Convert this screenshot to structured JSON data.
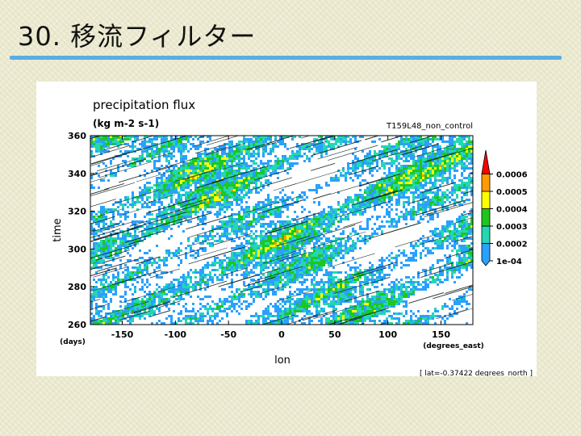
{
  "slide": {
    "title": "30. 移流フィルター",
    "rule_color": "#5aaee4"
  },
  "chart_data": {
    "type": "heatmap",
    "title": "precipitation flux",
    "subtitle": "(kg m-2 s-1)",
    "run_label": "T159L48_non_control",
    "xlabel": "lon",
    "ylabel": "time",
    "x_unit_label": "(degrees_east)",
    "y_unit_label": "(days)",
    "xlim": [
      -180,
      180
    ],
    "ylim": [
      260,
      360
    ],
    "x_ticks": [
      -150,
      -100,
      -50,
      0,
      50,
      100,
      150
    ],
    "y_ticks": [
      260,
      280,
      300,
      320,
      340,
      360
    ],
    "colorbar": {
      "levels": [
        "1e-04",
        "0.0002",
        "0.0003",
        "0.0004",
        "0.0005",
        "0.0006"
      ],
      "colors": [
        "#2aa0ff",
        "#24d7b4",
        "#1cc81c",
        "#ffff00",
        "#ff9b00",
        "#ff0000"
      ]
    },
    "footnote": "[ lat=-0.37422 degrees_north ]",
    "feature_direction": "eastward-propagating bands"
  }
}
